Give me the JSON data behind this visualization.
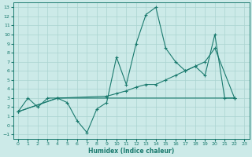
{
  "xlabel": "Humidex (Indice chaleur)",
  "bg_color": "#cceae8",
  "grid_color": "#aad4d0",
  "line_color": "#1a7a6e",
  "xlim": [
    -0.5,
    23.5
  ],
  "ylim": [
    -1.5,
    13.5
  ],
  "xticks": [
    0,
    1,
    2,
    3,
    4,
    5,
    6,
    7,
    8,
    9,
    10,
    11,
    12,
    13,
    14,
    15,
    16,
    17,
    18,
    19,
    20,
    21,
    22,
    23
  ],
  "yticks": [
    -1,
    0,
    1,
    2,
    3,
    4,
    5,
    6,
    7,
    8,
    9,
    10,
    11,
    12,
    13
  ],
  "line1_x": [
    0,
    1,
    2,
    3,
    4,
    5,
    6,
    7,
    8,
    9,
    10,
    11,
    12,
    13,
    14,
    15,
    16,
    17,
    18,
    19,
    20,
    21,
    22
  ],
  "line1_y": [
    1.5,
    3,
    2,
    3,
    3,
    2.5,
    0.5,
    -0.8,
    1.8,
    2.5,
    7.5,
    4.5,
    9,
    12.2,
    13,
    8.5,
    7,
    6,
    6.5,
    5.5,
    10,
    3,
    3
  ],
  "line2_x": [
    0,
    4,
    9,
    10,
    11,
    12,
    13,
    14,
    15,
    16,
    17,
    18,
    19,
    20,
    22
  ],
  "line2_y": [
    1.5,
    3,
    3.2,
    3.5,
    3.8,
    4.2,
    4.5,
    4.5,
    5,
    5.5,
    6,
    6.5,
    7,
    8.5,
    3
  ],
  "line3_x": [
    0,
    4,
    22
  ],
  "line3_y": [
    1.5,
    3,
    3
  ]
}
